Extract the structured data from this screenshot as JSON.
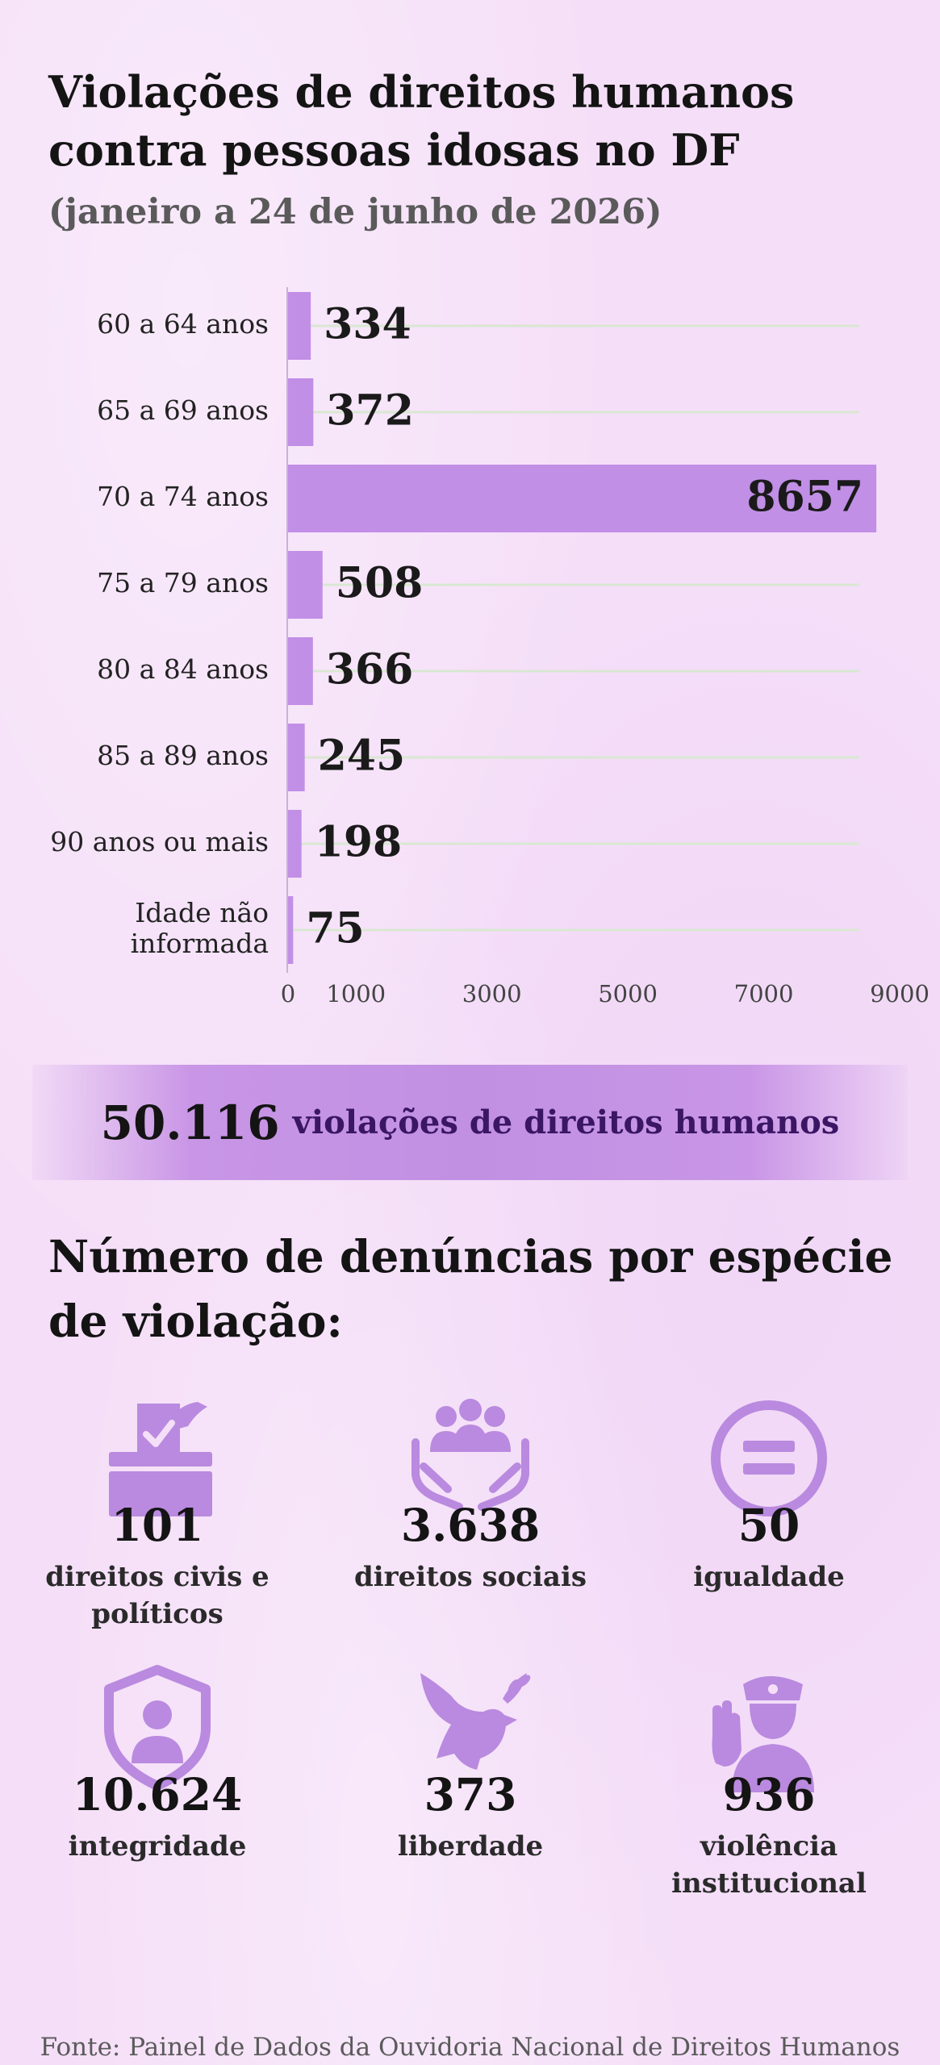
{
  "title": "Violações de direitos humanos contra pessoas idosas no DF",
  "subtitle": "(janeiro a 24 de junho de 2026)",
  "chart_data": {
    "type": "bar",
    "orientation": "horizontal",
    "categories": [
      "60 a 64 anos",
      "65 a 69 anos",
      "70 a 74 anos",
      "75 a 79 anos",
      "80 a 84 anos",
      "85 a 89 anos",
      "90 anos ou mais",
      "Idade não informada"
    ],
    "values": [
      334,
      372,
      8657,
      508,
      366,
      245,
      198,
      75
    ],
    "value_labels": [
      "334",
      "372",
      "8657",
      "508",
      "366",
      "245",
      "198",
      "75"
    ],
    "xlim": [
      0,
      9000
    ],
    "x_ticks": [
      "0",
      "1000",
      "3000",
      "5000",
      "7000",
      "9000"
    ],
    "grid": true,
    "bar_color": "#c18fe6"
  },
  "banner": {
    "number": "50.116",
    "text": "violações de direitos humanos"
  },
  "section_title": "Número de denúncias por espécie de violação:",
  "categories": [
    {
      "icon": "ballot-box-icon",
      "value": "101",
      "label": "direitos civis e políticos"
    },
    {
      "icon": "community-hands-icon",
      "value": "3.638",
      "label": "direitos sociais"
    },
    {
      "icon": "equality-icon",
      "value": "50",
      "label": "igualdade"
    },
    {
      "icon": "shield-person-icon",
      "value": "10.624",
      "label": "integridade"
    },
    {
      "icon": "dove-icon",
      "value": "373",
      "label": "liberdade"
    },
    {
      "icon": "police-officer-icon",
      "value": "936",
      "label": "violência institucional"
    }
  ],
  "colors": {
    "accent": "#c18fe6",
    "background": "#f5dff8",
    "icon": "#b98adf",
    "banner_text": "#3a1664"
  },
  "source": "Fonte: Painel de Dados da Ouvidoria Nacional de Direitos Humanos"
}
